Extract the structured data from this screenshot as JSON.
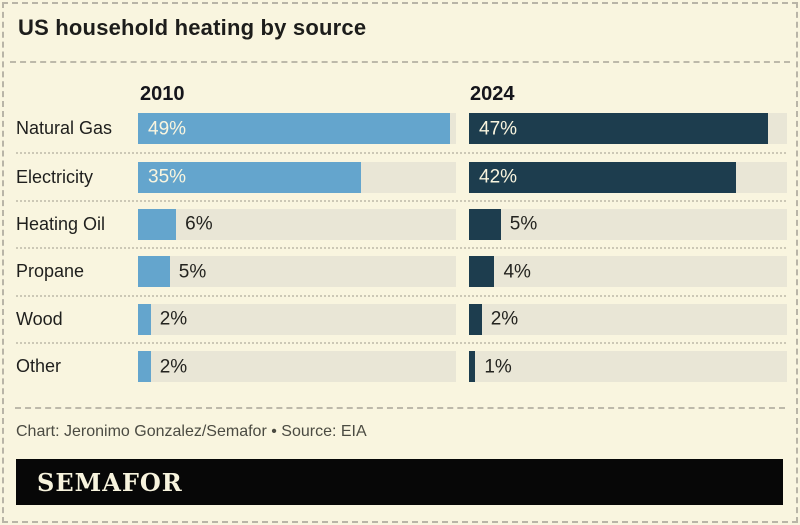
{
  "title": "US household heating by source",
  "footer": {
    "credit": "Chart: Jeronimo Gonzalez/Semafor • Source: EIA"
  },
  "logo": {
    "text": "SEMAFOR"
  },
  "colors": {
    "background": "#f9f5df",
    "track": "#e9e6d6",
    "bar_2010": "#64a5cd",
    "bar_2024": "#1d3d4e",
    "logo_background": "#070707",
    "logo_text": "#f7f3dd",
    "value_inside": "#f9f5df",
    "value_outside": "#23231f"
  },
  "chart_data": {
    "type": "bar",
    "orientation": "horizontal",
    "title": "US household heating by source",
    "categories": [
      "Natural Gas",
      "Electricity",
      "Heating Oil",
      "Propane",
      "Wood",
      "Other"
    ],
    "series": [
      {
        "name": "2010",
        "values": [
          49,
          35,
          6,
          5,
          2,
          2
        ],
        "labels": [
          "49%",
          "35%",
          "6%",
          "5%",
          "2%",
          "2%"
        ],
        "color": "#64a5cd"
      },
      {
        "name": "2024",
        "values": [
          47,
          42,
          5,
          4,
          2,
          1
        ],
        "labels": [
          "47%",
          "42%",
          "5%",
          "4%",
          "2%",
          "1%"
        ],
        "color": "#1d3d4e"
      }
    ],
    "value_suffix": "%",
    "xlim": [
      0,
      50
    ],
    "grid": false,
    "legend_position": "column-headers-top"
  }
}
